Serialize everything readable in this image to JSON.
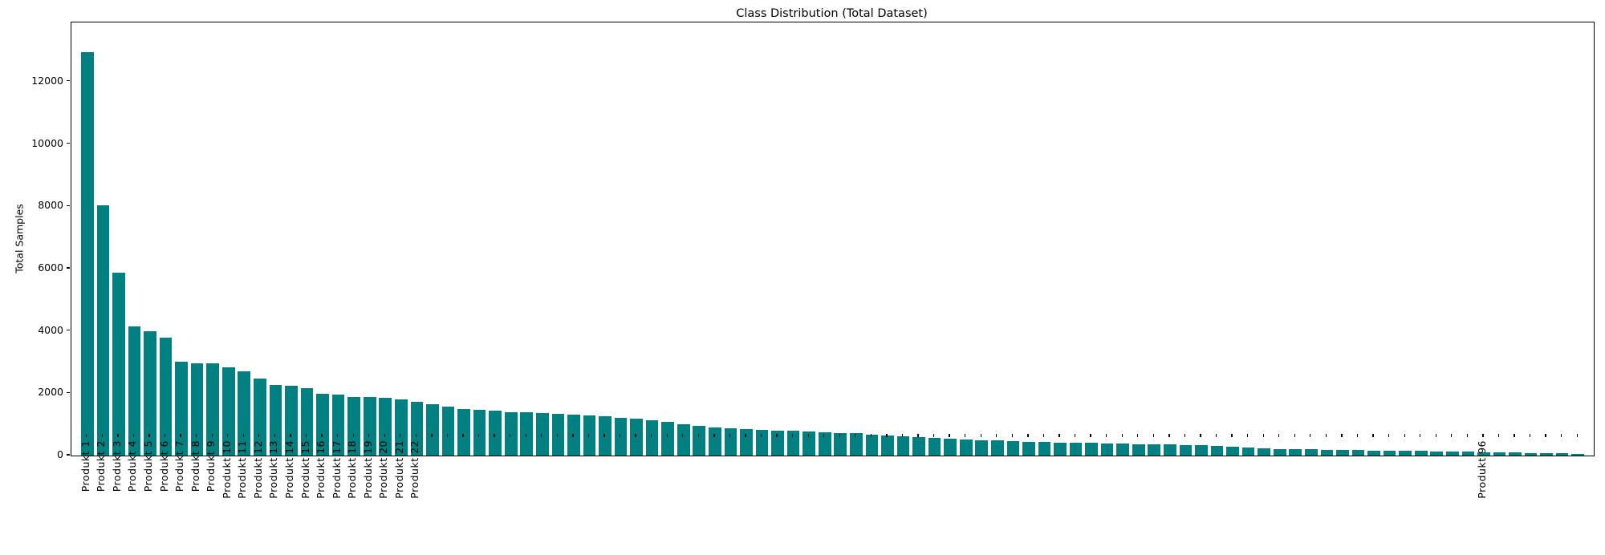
{
  "chart_data": {
    "type": "bar",
    "title": "Class Distribution (Total Dataset)",
    "xlabel": "",
    "ylabel": "Total Samples",
    "bar_color": "#008080",
    "background_color": "#ffffff",
    "grid": false,
    "legend": null,
    "ylim": [
      0,
      13900
    ],
    "yticks": [
      0,
      2000,
      4000,
      6000,
      8000,
      10000,
      12000
    ],
    "x_tick_labels": [
      "Produkt 1",
      "Produkt 2",
      "Produkt 3",
      "Produkt 4",
      "Produkt 5",
      "Produkt 6",
      "Produkt 7",
      "Produkt 8",
      "Produkt 9",
      "Produkt 10",
      "Produkt 11",
      "Produkt 12",
      "Produkt 13",
      "Produkt 14",
      "Produkt 15",
      "Produkt 16",
      "Produkt 17",
      "Produkt 18",
      "Produkt 19",
      "Produkt 20",
      "Produkt 21",
      "Produkt 22",
      "",
      "",
      "",
      "",
      "",
      "",
      "",
      "",
      "",
      "",
      "",
      "",
      "",
      "",
      "",
      "",
      "",
      "",
      "",
      "",
      "",
      "",
      "",
      "",
      "",
      "",
      "",
      "",
      "",
      "",
      "",
      "",
      "",
      "",
      "",
      "",
      "",
      "",
      "",
      "",
      "",
      "",
      "",
      "",
      "",
      "",
      "",
      "",
      "",
      "",
      "",
      "",
      "",
      "",
      "",
      "",
      "",
      "",
      "",
      "",
      "",
      "",
      "",
      "",
      "",
      "",
      "",
      "Produkt 96"
    ],
    "values": [
      12950,
      8030,
      5880,
      4150,
      3980,
      3780,
      3010,
      2960,
      2950,
      2830,
      2700,
      2480,
      2260,
      2230,
      2160,
      1980,
      1950,
      1890,
      1870,
      1850,
      1790,
      1720,
      1650,
      1560,
      1500,
      1460,
      1430,
      1400,
      1380,
      1360,
      1330,
      1310,
      1290,
      1260,
      1220,
      1180,
      1130,
      1070,
      1010,
      950,
      900,
      870,
      850,
      830,
      810,
      790,
      770,
      750,
      730,
      710,
      680,
      650,
      620,
      590,
      560,
      540,
      520,
      500,
      480,
      460,
      440,
      430,
      420,
      410,
      400,
      390,
      380,
      370,
      360,
      350,
      340,
      330,
      310,
      290,
      260,
      230,
      215,
      205,
      195,
      185,
      175,
      170,
      165,
      160,
      155,
      150,
      140,
      130,
      120,
      110,
      100,
      95,
      90,
      80,
      70,
      55
    ]
  }
}
